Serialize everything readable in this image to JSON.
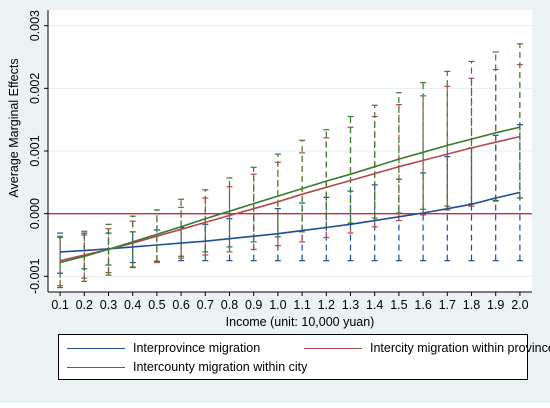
{
  "chart_data": {
    "type": "line",
    "xlabel": "Income (unit: 10,000 yuan)",
    "ylabel": "Average Marginal Effects",
    "x": [
      0.1,
      0.2,
      0.3,
      0.4,
      0.5,
      0.6,
      0.7,
      0.8,
      0.9,
      1.0,
      1.1,
      1.2,
      1.3,
      1.4,
      1.5,
      1.6,
      1.7,
      1.8,
      1.9,
      2.0
    ],
    "xticks": [
      "0.1",
      "0.2",
      "0.3",
      "0.4",
      "0.5",
      "0.6",
      "0.7",
      "0.8",
      "0.9",
      "1.0",
      "1.1",
      "1.2",
      "1.3",
      "1.4",
      "1.5",
      "1.6",
      "1.7",
      "1.8",
      "1.9",
      "2.0"
    ],
    "yticks": [
      -0.001,
      0.0,
      0.001,
      0.002,
      0.003
    ],
    "ytick_labels": [
      "-0.001",
      "0.000",
      "0.001",
      "0.002",
      "0.003"
    ],
    "xlim": [
      0.05,
      2.05
    ],
    "ylim": [
      -0.00125,
      0.00325
    ],
    "reference_line": {
      "y": 0.0,
      "color": "#cc2a3f"
    },
    "grid": "horizontal",
    "legend_position": "bottom",
    "series": [
      {
        "name": "Interprovince migration",
        "color": "#1f4e93",
        "values": [
          -0.00061,
          -0.00059,
          -0.00056,
          -0.00053,
          -0.0005,
          -0.00047,
          -0.00044,
          -0.0004,
          -0.00036,
          -0.00032,
          -0.00027,
          -0.00022,
          -0.00017,
          -0.00011,
          -5e-05,
          1e-05,
          8e-05,
          0.00015,
          0.00025,
          0.00034
        ],
        "ci_low": [
          -0.00095,
          -0.00088,
          -0.00082,
          -0.00078,
          -0.00076,
          -0.00075,
          -0.00075,
          -0.00075,
          -0.00075,
          -0.00075,
          -0.00075,
          -0.00075,
          -0.00075,
          -0.00075,
          -0.00075,
          -0.00075,
          -0.00075,
          -0.00075,
          -0.00075,
          -0.00075
        ],
        "ci_high": [
          -0.00031,
          -0.00031,
          -0.00031,
          -0.00029,
          -0.00026,
          -0.00022,
          -0.00017,
          -8e-05,
          0.0,
          8e-05,
          0.00017,
          0.00026,
          0.00036,
          0.00046,
          0.00055,
          0.00065,
          0.00091,
          0.00105,
          0.00125,
          0.00142
        ]
      },
      {
        "name": "Intercity migration within province",
        "color": "#b24a4f",
        "values": [
          -0.00075,
          -0.00066,
          -0.00057,
          -0.00047,
          -0.00036,
          -0.00025,
          -0.00014,
          -3e-05,
          8e-05,
          0.00019,
          0.00031,
          0.00042,
          0.00053,
          0.00064,
          0.00075,
          0.00085,
          0.00095,
          0.00105,
          0.00114,
          0.00123
        ],
        "ci_low": [
          -0.00115,
          -0.00103,
          -0.00094,
          -0.00085,
          -0.00078,
          -0.00071,
          -0.00066,
          -0.00061,
          -0.00057,
          -0.00051,
          -0.00045,
          -0.00038,
          -0.00031,
          -0.00021,
          -0.00011,
          -2e-05,
          6e-05,
          0.00012,
          0.0002,
          0.00025
        ],
        "ci_high": [
          -0.00038,
          -0.00034,
          -0.00024,
          -0.00012,
          0.0,
          0.0001,
          0.00025,
          0.00043,
          0.00063,
          0.00082,
          0.00097,
          0.00121,
          0.00138,
          0.00155,
          0.00174,
          0.00188,
          0.00203,
          0.00216,
          0.0023,
          0.00238
        ]
      },
      {
        "name": "Intercounty migration within city",
        "color": "#3b7a2e",
        "values": [
          -0.00078,
          -0.00068,
          -0.00057,
          -0.00045,
          -0.00033,
          -0.00021,
          -8e-05,
          4e-05,
          0.00016,
          0.00028,
          0.0004,
          0.00052,
          0.00063,
          0.00075,
          0.00087,
          0.00098,
          0.00109,
          0.00119,
          0.00129,
          0.00138
        ],
        "ci_low": [
          -0.00118,
          -0.00108,
          -0.00098,
          -0.00086,
          -0.00076,
          -0.00068,
          -0.00061,
          -0.00053,
          -0.00045,
          -0.00037,
          -0.00029,
          -0.00022,
          -0.00015,
          -7e-05,
          1e-05,
          7e-05,
          0.00012,
          0.00016,
          0.00021,
          0.00025
        ],
        "ci_high": [
          -0.00036,
          -0.00028,
          -0.00017,
          -4e-05,
          6e-05,
          0.00023,
          0.00038,
          0.00057,
          0.00074,
          0.00095,
          0.00117,
          0.00134,
          0.00155,
          0.00173,
          0.00193,
          0.00209,
          0.00227,
          0.00243,
          0.00258,
          0.00271
        ]
      }
    ]
  }
}
